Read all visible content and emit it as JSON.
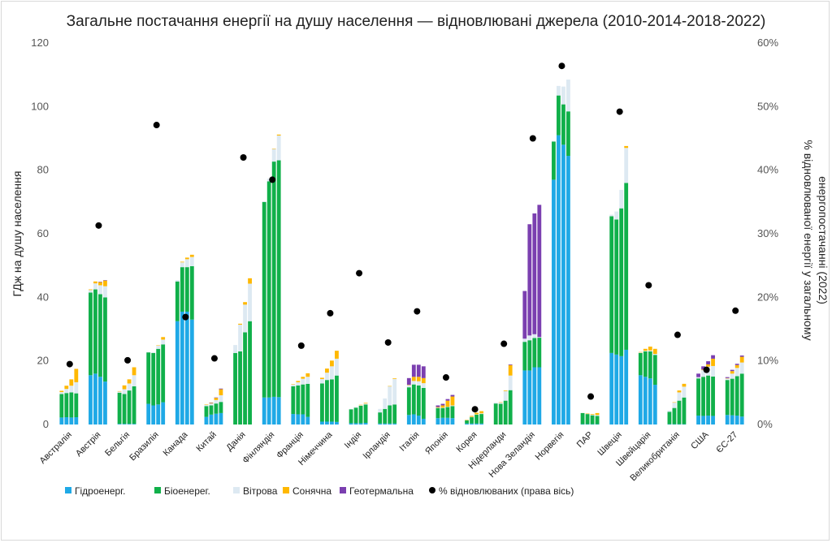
{
  "chart_data": {
    "type": "bar",
    "subtype": "stacked-bar-grouped-with-scatter-secondary-axis",
    "title": "Загальне постачання енергії на душу населення — відновлювані джерела (2010-2014-2018-2022)",
    "ylabel": "ГДж на душу населення",
    "y2label": "% відновлюваної енергії у загальному енергопостачанні (2022)",
    "ylim": [
      0,
      120
    ],
    "y2lim": [
      0,
      60
    ],
    "yticks": [
      "0",
      "20",
      "40",
      "60",
      "80",
      "100",
      "120"
    ],
    "y2ticks": [
      "0%",
      "10%",
      "20%",
      "30%",
      "40%",
      "50%",
      "60%"
    ],
    "grid": false,
    "legend_position": "bottom",
    "years": [
      "2010",
      "2014",
      "2018",
      "2022"
    ],
    "series_names": [
      "Гідроенерг.",
      "Біоенерег.",
      "Вітрова",
      "Сонячна",
      "Геотермальна"
    ],
    "series_colors": [
      "#1fa9e6",
      "#10b04a",
      "#dde9f2",
      "#ffb800",
      "#7b3fb0"
    ],
    "scatter_name": "% відновлюваних (права вісь)",
    "scatter_color": "#000000",
    "categories": [
      "Австралія",
      "Австрія",
      "Бельгія",
      "Бразилія",
      "Канада",
      "Китай",
      "Данія",
      "Фінляндія",
      "Франція",
      "Німеччина",
      "Індія",
      "Ірландія",
      "Італія",
      "Японія",
      "Корея",
      "Нідерланди",
      "Нова Зеландія",
      "Норвегія",
      "ПАР",
      "Швеція",
      "Швейцарія",
      "Великобританія",
      "США",
      "ЄС-27"
    ],
    "countries": [
      {
        "name": "Австралія",
        "pct": 9.5,
        "bars": [
          [
            2.2,
            7.4,
            0.6,
            0.4,
            0
          ],
          [
            2.3,
            7.6,
            1.3,
            1.0,
            0
          ],
          [
            2.2,
            7.9,
            2.1,
            2.0,
            0
          ],
          [
            2.3,
            7.5,
            3.5,
            4.2,
            0
          ]
        ]
      },
      {
        "name": "Австрія",
        "pct": 31.3,
        "bars": [
          [
            15.5,
            26.0,
            0.8,
            0.2,
            0
          ],
          [
            16.0,
            26.5,
            1.9,
            0.6,
            0
          ],
          [
            15.0,
            26.0,
            2.8,
            1.0,
            0.1
          ],
          [
            13.5,
            26.5,
            3.5,
            1.8,
            0.1
          ]
        ]
      },
      {
        "name": "Бельгія",
        "pct": 10.1,
        "bars": [
          [
            0.2,
            9.8,
            0.4,
            0.1,
            0
          ],
          [
            0.2,
            9.4,
            1.5,
            1.2,
            0
          ],
          [
            0.2,
            10.5,
            2.2,
            1.3,
            0
          ],
          [
            0.2,
            11.8,
            3.5,
            2.5,
            0
          ]
        ]
      },
      {
        "name": "Бразилія",
        "pct": 47.1,
        "bars": [
          [
            6.5,
            16.2,
            0.1,
            0,
            0
          ],
          [
            6.0,
            16.5,
            0.2,
            0,
            0
          ],
          [
            6.3,
            17.5,
            1.0,
            0.1,
            0
          ],
          [
            7.0,
            18.2,
            1.5,
            0.8,
            0
          ]
        ]
      },
      {
        "name": "Канада",
        "pct": 16.9,
        "bars": [
          [
            32.5,
            12.5,
            0.4,
            0,
            0
          ],
          [
            35.5,
            14.0,
            1.5,
            0.2,
            0
          ],
          [
            35.5,
            14.0,
            2.5,
            0.5,
            0
          ],
          [
            33.0,
            16.8,
            2.9,
            0.7,
            0
          ]
        ]
      },
      {
        "name": "Китай",
        "pct": 10.4,
        "bars": [
          [
            2.4,
            3.4,
            0.4,
            0.1,
            0
          ],
          [
            3.1,
            2.9,
            0.6,
            0.2,
            0.1
          ],
          [
            3.4,
            3.2,
            1.1,
            0.7,
            0.1
          ],
          [
            3.6,
            3.5,
            2.1,
            1.9,
            0.2
          ]
        ]
      },
      {
        "name": "Данія",
        "pct": 42.0,
        "bars": [
          [
            0,
            22.5,
            2.5,
            0,
            0
          ],
          [
            0,
            23.0,
            8.4,
            0.3,
            0
          ],
          [
            0,
            29.0,
            8.7,
            0.8,
            0
          ],
          [
            0,
            32.5,
            11.8,
            1.7,
            0
          ]
        ]
      },
      {
        "name": "Фінляндія",
        "pct": 38.5,
        "bars": [
          [
            8.5,
            61.5,
            0.2,
            0,
            0
          ],
          [
            8.5,
            68.0,
            0.8,
            0,
            0
          ],
          [
            8.7,
            74.0,
            4.0,
            0.1,
            0
          ],
          [
            8.6,
            74.5,
            7.8,
            0.3,
            0
          ]
        ]
      },
      {
        "name": "Франція",
        "pct": 12.4,
        "bars": [
          [
            3.3,
            8.7,
            0.6,
            0.1,
            0
          ],
          [
            3.2,
            9.1,
            1.0,
            0.4,
            0
          ],
          [
            3.2,
            9.4,
            1.8,
            0.6,
            0
          ],
          [
            2.4,
            10.4,
            2.2,
            1.1,
            0
          ]
        ]
      },
      {
        "name": "Німеччина",
        "pct": 17.5,
        "bars": [
          [
            0.9,
            12.0,
            1.4,
            0.4,
            0
          ],
          [
            0.9,
            13.1,
            2.3,
            1.3,
            0
          ],
          [
            0.9,
            13.3,
            4.1,
            1.8,
            0
          ],
          [
            0.8,
            14.6,
            5.3,
            2.5,
            0
          ]
        ]
      },
      {
        "name": "Індія",
        "pct": 23.8,
        "bars": [
          [
            0.4,
            4.4,
            0.1,
            0,
            0
          ],
          [
            0.4,
            4.9,
            0.2,
            0,
            0
          ],
          [
            0.4,
            5.5,
            0.2,
            0.1,
            0
          ],
          [
            0.5,
            5.8,
            0.3,
            0.2,
            0
          ]
        ]
      },
      {
        "name": "Ірландія",
        "pct": 12.9,
        "bars": [
          [
            0.3,
            3.5,
            1.1,
            0,
            0
          ],
          [
            0.3,
            4.6,
            3.3,
            0,
            0
          ],
          [
            0.3,
            5.7,
            6.0,
            0.1,
            0
          ],
          [
            0.3,
            6.0,
            8.0,
            0.2,
            0
          ]
        ]
      },
      {
        "name": "Італія",
        "pct": 17.8,
        "bars": [
          [
            3.0,
            8.7,
            0.7,
            0.1,
            2.1
          ],
          [
            3.2,
            9.4,
            1.1,
            1.3,
            3.8
          ],
          [
            2.8,
            9.5,
            1.3,
            1.4,
            3.8
          ],
          [
            1.8,
            9.7,
            1.5,
            1.6,
            3.7
          ]
        ]
      },
      {
        "name": "Японія",
        "pct": 7.4,
        "bars": [
          [
            2.0,
            3.2,
            0.1,
            0.2,
            0.5
          ],
          [
            2.1,
            3.1,
            0.1,
            0.7,
            0.5
          ],
          [
            2.1,
            3.4,
            0.1,
            1.9,
            0.5
          ],
          [
            2.0,
            3.8,
            0.2,
            2.8,
            0.5
          ]
        ]
      },
      {
        "name": "Корея",
        "pct": 2.4,
        "bars": [
          [
            0.3,
            1.0,
            0.1,
            0.1,
            0
          ],
          [
            0.3,
            2.0,
            0.1,
            0.3,
            0
          ],
          [
            0.3,
            2.8,
            0.1,
            0.5,
            0
          ],
          [
            0.3,
            3.0,
            0.2,
            0.7,
            0
          ]
        ]
      },
      {
        "name": "Нідерланди",
        "pct": 12.7,
        "bars": [
          [
            0,
            6.6,
            0.3,
            0,
            0
          ],
          [
            0,
            6.5,
            0.4,
            0.1,
            0
          ],
          [
            0,
            7.5,
            3.0,
            0.2,
            0
          ],
          [
            0,
            10.8,
            4.6,
            3.3,
            0.2
          ]
        ]
      },
      {
        "name": "Нова Зеландія",
        "pct": 45.0,
        "bars": [
          [
            17.0,
            9.0,
            1.0,
            0,
            15.0
          ],
          [
            17.0,
            9.5,
            1.5,
            0,
            35.0
          ],
          [
            18.0,
            9.2,
            1.2,
            0,
            38.0
          ],
          [
            18.0,
            9.3,
            0.2,
            0,
            41.6
          ]
        ]
      },
      {
        "name": "Норвегія",
        "pct": 56.4,
        "bars": [
          [
            77.0,
            12.0,
            0.2,
            0,
            0
          ],
          [
            91.0,
            12.5,
            3.0,
            0,
            0
          ],
          [
            88.0,
            12.7,
            5.6,
            0,
            0
          ],
          [
            84.5,
            14.0,
            10.0,
            0,
            0
          ]
        ]
      },
      {
        "name": "ПАР",
        "pct": 4.4,
        "bars": [
          [
            0.1,
            3.5,
            0,
            0,
            0
          ],
          [
            0.1,
            3.2,
            0.1,
            0.1,
            0
          ],
          [
            0.1,
            2.8,
            0.2,
            0.2,
            0
          ],
          [
            0.1,
            2.6,
            0.3,
            0.6,
            0
          ]
        ]
      },
      {
        "name": "Швеція",
        "pct": 49.2,
        "bars": [
          [
            22.5,
            43.0,
            0.5,
            0,
            0
          ],
          [
            22.0,
            42.5,
            2.5,
            0,
            0
          ],
          [
            21.5,
            46.5,
            5.8,
            0,
            0
          ],
          [
            23.5,
            52.5,
            11.0,
            0.6,
            0
          ]
        ]
      },
      {
        "name": "Швейцарія",
        "pct": 21.9,
        "bars": [
          [
            15.5,
            7.0,
            0.2,
            0.1,
            0
          ],
          [
            15.0,
            8.0,
            0.2,
            0.6,
            0
          ],
          [
            14.5,
            8.5,
            0.3,
            1.2,
            0
          ],
          [
            12.5,
            9.4,
            0.3,
            1.6,
            0
          ]
        ]
      },
      {
        "name": "Великобританія",
        "pct": 14.1,
        "bars": [
          [
            0.1,
            3.9,
            0.4,
            0,
            0
          ],
          [
            0.1,
            5.1,
            1.7,
            0.1,
            0
          ],
          [
            0.1,
            7.4,
            2.6,
            0.6,
            0
          ],
          [
            0.1,
            8.4,
            3.4,
            0.9,
            0
          ]
        ]
      },
      {
        "name": "США",
        "pct": 8.6,
        "bars": [
          [
            2.8,
            11.7,
            0.4,
            0,
            1.1
          ],
          [
            2.7,
            12.3,
            2.1,
            0.2,
            1.0
          ],
          [
            2.8,
            12.6,
            2.8,
            0.7,
            1.0
          ],
          [
            2.7,
            12.4,
            3.3,
            2.3,
            1.1
          ]
        ]
      },
      {
        "name": "ЄС-27",
        "pct": 17.9,
        "bars": [
          [
            3.0,
            11.0,
            0.5,
            0.1,
            0.3
          ],
          [
            2.9,
            11.5,
            1.6,
            0.8,
            0.4
          ],
          [
            2.8,
            12.4,
            2.6,
            0.9,
            0.4
          ],
          [
            2.5,
            13.5,
            3.5,
            1.8,
            0.4
          ]
        ]
      }
    ]
  }
}
